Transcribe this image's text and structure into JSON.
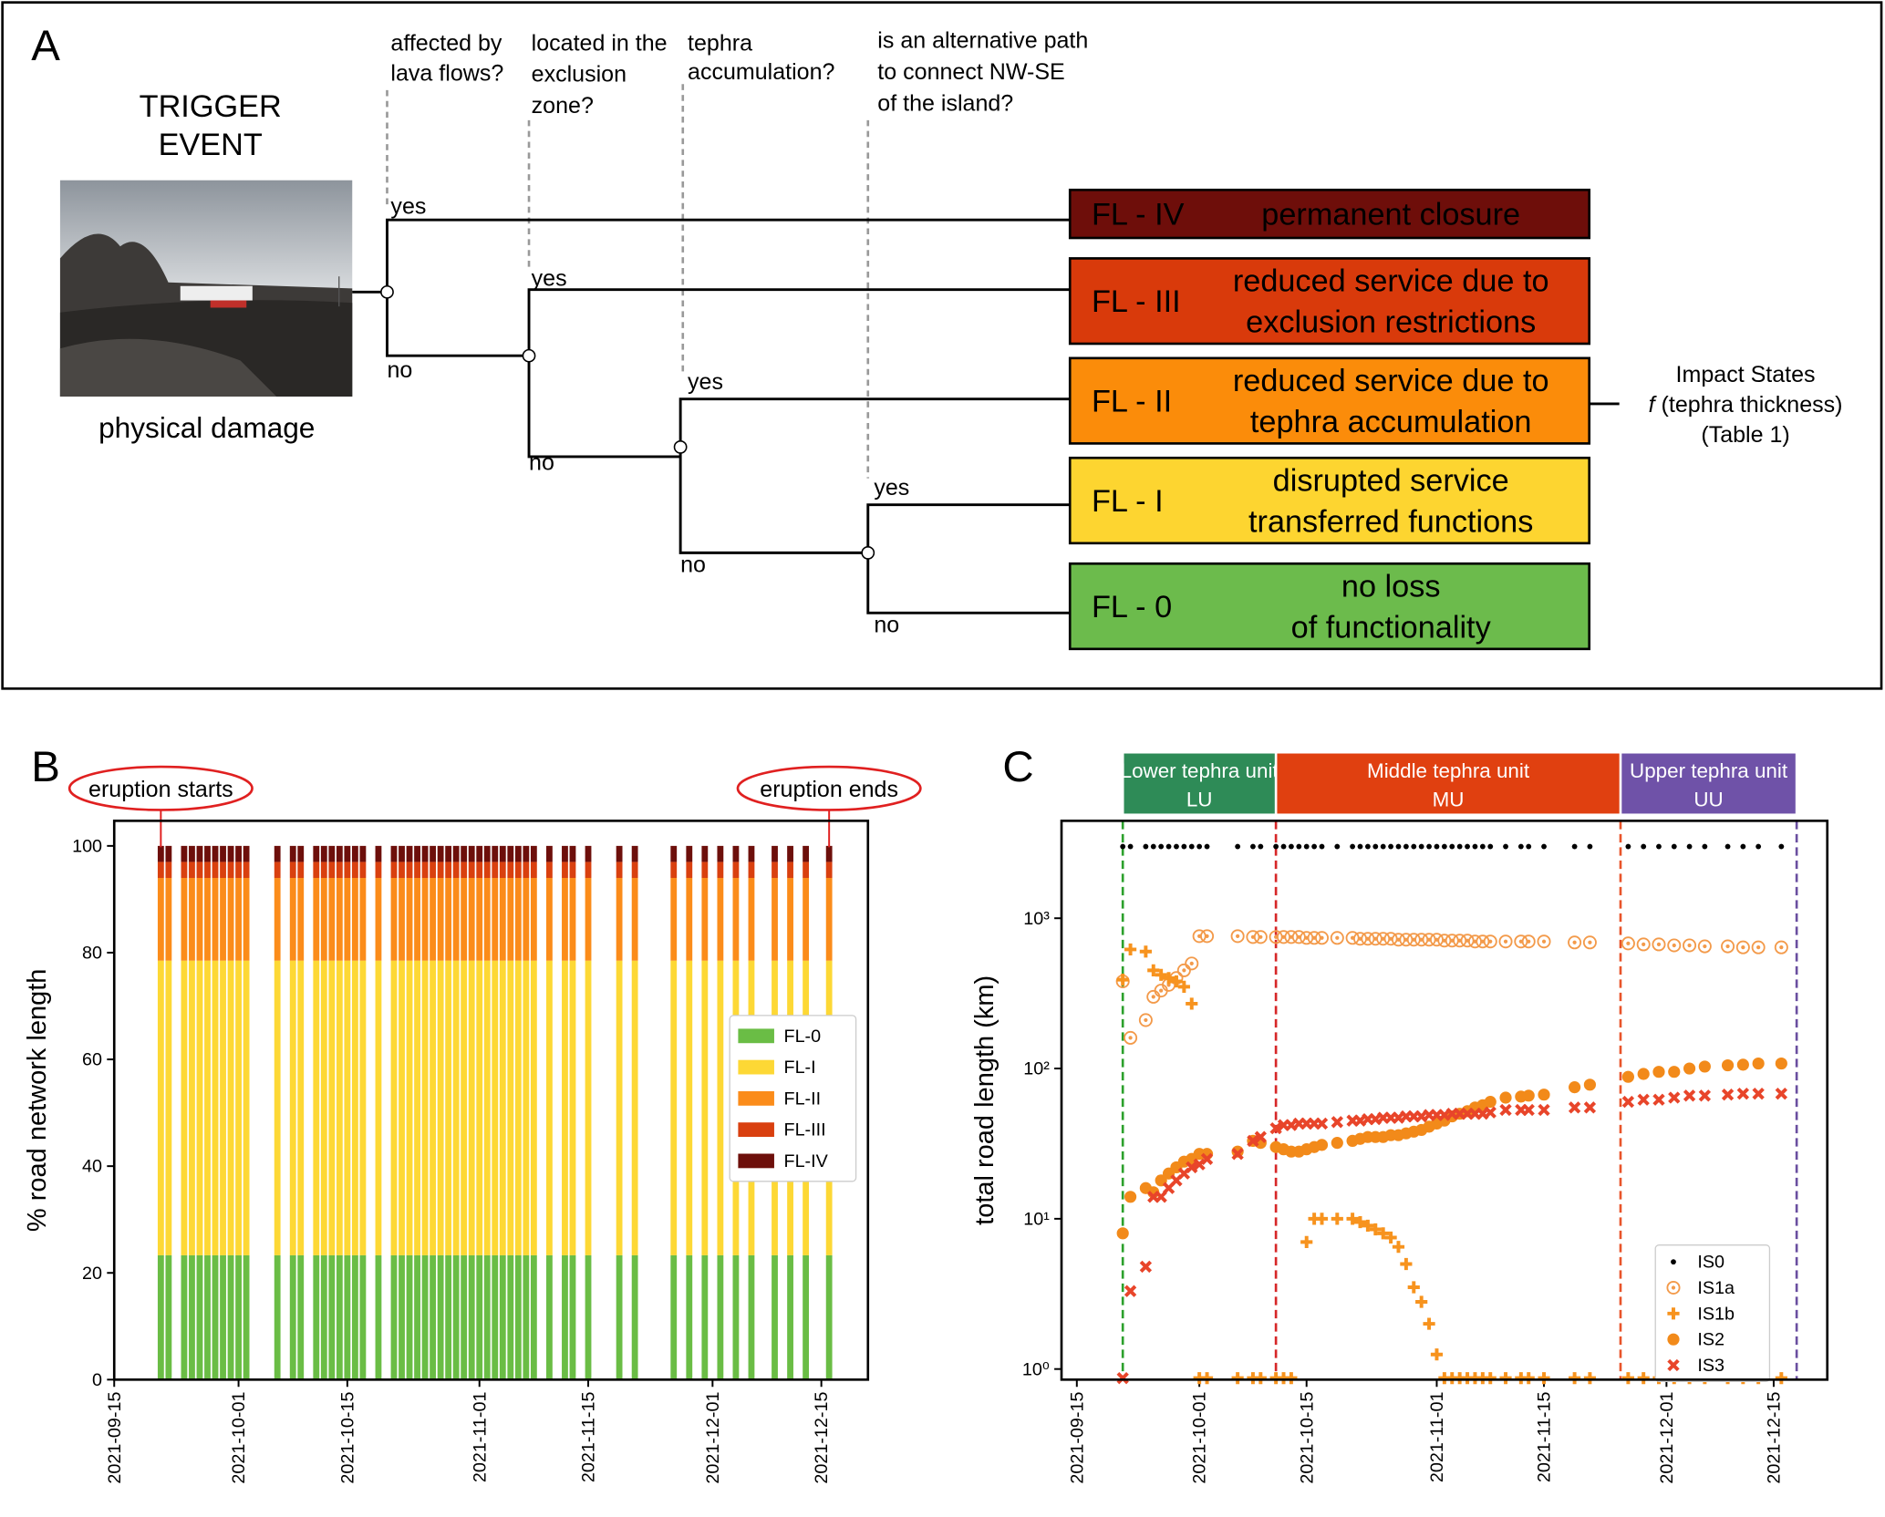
{
  "diagram": {
    "panel_label": "A",
    "trigger_title": [
      "TRIGGER",
      "EVENT"
    ],
    "trigger_caption": "physical damage",
    "questions": [
      [
        "affected by",
        "lava flows?"
      ],
      [
        "located in the",
        "exclusion",
        "zone?"
      ],
      [
        "tephra",
        "accumulation?"
      ],
      [
        "is an alternative path",
        "to connect NW-SE",
        "of the island?"
      ]
    ],
    "yes_label": "yes",
    "no_label": "no",
    "outcomes": [
      {
        "code": "FL - IV",
        "lines": [
          "permanent closure"
        ],
        "color": "#6e0e0a",
        "text_color": "#ffffff"
      },
      {
        "code": "FL - III",
        "lines": [
          "reduced service due to",
          "exclusion restrictions"
        ],
        "color": "#d93a0b",
        "text_color": "#ffffff"
      },
      {
        "code": "FL - II",
        "lines": [
          "reduced service due to",
          "tephra accumulation"
        ],
        "color": "#fb8c0a",
        "text_color": "#ffffff"
      },
      {
        "code": "FL - I",
        "lines": [
          "disrupted service",
          "transferred functions"
        ],
        "color": "#fdd530",
        "text_color": "#000000"
      },
      {
        "code": "FL - 0",
        "lines": [
          "no loss",
          "of functionality"
        ],
        "color": "#6cbb4c",
        "text_color": "#000000"
      }
    ],
    "side_note": {
      "title": "Impact States",
      "function": "f",
      "argument": "(tephra thickness)",
      "ref": "(Table 1)"
    }
  },
  "chart_data": [
    {
      "type": "bar",
      "stacked": true,
      "panel_label": "B",
      "ylabel": "% road network length",
      "legend": "center right",
      "x": [
        "2021-09-21",
        "2021-09-22",
        "2021-09-24",
        "2021-09-25",
        "2021-09-26",
        "2021-09-27",
        "2021-09-28",
        "2021-09-29",
        "2021-09-30",
        "2021-10-01",
        "2021-10-02",
        "2021-10-06",
        "2021-10-08",
        "2021-10-09",
        "2021-10-11",
        "2021-10-12",
        "2021-10-13",
        "2021-10-14",
        "2021-10-15",
        "2021-10-16",
        "2021-10-17",
        "2021-10-19",
        "2021-10-21",
        "2021-10-22",
        "2021-10-23",
        "2021-10-24",
        "2021-10-25",
        "2021-10-26",
        "2021-10-27",
        "2021-10-28",
        "2021-10-29",
        "2021-10-30",
        "2021-10-31",
        "2021-11-01",
        "2021-11-02",
        "2021-11-03",
        "2021-11-04",
        "2021-11-05",
        "2021-11-06",
        "2021-11-07",
        "2021-11-08",
        "2021-11-10",
        "2021-11-12",
        "2021-11-13",
        "2021-11-15",
        "2021-11-19",
        "2021-11-21",
        "2021-11-26",
        "2021-11-28",
        "2021-11-30",
        "2021-12-02",
        "2021-12-04",
        "2021-12-06",
        "2021-12-09",
        "2021-12-11",
        "2021-12-13",
        "2021-12-16"
      ],
      "series": [
        {
          "name": "FL-0",
          "color": "#6abd45",
          "values": [
            23.3,
            23.3,
            23.3,
            23.3,
            23.3,
            23.3,
            23.3,
            23.3,
            23.3,
            23.3,
            23.3,
            23.3,
            23.3,
            23.3,
            23.3,
            23.3,
            23.3,
            23.3,
            23.3,
            23.3,
            23.3,
            23.3,
            23.3,
            23.3,
            23.3,
            23.3,
            23.3,
            23.3,
            23.3,
            23.3,
            23.3,
            23.3,
            23.3,
            23.3,
            23.3,
            23.3,
            23.3,
            23.3,
            23.3,
            23.3,
            23.3,
            23.3,
            23.3,
            23.3,
            23.3,
            23.3,
            23.3,
            23.3,
            23.3,
            23.3,
            23.3,
            23.3,
            23.3,
            23.3,
            23.3,
            23.3,
            23.3
          ]
        },
        {
          "name": "FL-I",
          "color": "#fdd835",
          "values": [
            55.2,
            55.2,
            55.2,
            55.2,
            55.2,
            55.2,
            55.2,
            55.2,
            55.2,
            55.2,
            55.2,
            55.2,
            55.2,
            55.2,
            55.2,
            55.2,
            55.2,
            55.2,
            55.2,
            55.2,
            55.2,
            55.2,
            55.2,
            55.2,
            55.2,
            55.2,
            55.2,
            55.2,
            55.2,
            55.2,
            55.2,
            55.2,
            55.2,
            55.2,
            55.2,
            55.2,
            55.2,
            55.2,
            55.2,
            55.2,
            55.2,
            55.2,
            55.2,
            55.2,
            55.2,
            55.2,
            55.2,
            55.2,
            55.2,
            55.2,
            55.2,
            55.2,
            55.2,
            55.2,
            55.2,
            55.2,
            55.2
          ]
        },
        {
          "name": "FL-II",
          "color": "#fb8c1a",
          "values": [
            15.5,
            15.5,
            15.5,
            15.5,
            15.5,
            15.5,
            15.5,
            15.5,
            15.5,
            15.5,
            15.5,
            15.5,
            15.5,
            15.5,
            15.5,
            15.5,
            15.5,
            15.5,
            15.5,
            15.5,
            15.5,
            15.5,
            15.5,
            15.5,
            15.5,
            15.5,
            15.5,
            15.5,
            15.5,
            15.5,
            15.5,
            15.5,
            15.5,
            15.5,
            15.5,
            15.5,
            15.5,
            15.5,
            15.5,
            15.5,
            15.5,
            15.5,
            15.5,
            15.5,
            15.5,
            15.5,
            15.5,
            15.5,
            15.5,
            15.5,
            15.5,
            15.5,
            15.5,
            15.5,
            15.5,
            15.5,
            15.5
          ]
        },
        {
          "name": "FL-III",
          "color": "#d9400f",
          "values": [
            3,
            3,
            3,
            3,
            3,
            3,
            3,
            3,
            3,
            3,
            3,
            3,
            3,
            3,
            3,
            3,
            3,
            3,
            3,
            3,
            3,
            3,
            3,
            3,
            3,
            3,
            3,
            3,
            3,
            3,
            3,
            3,
            3,
            3,
            3,
            3,
            3,
            3,
            3,
            3,
            3,
            3,
            3,
            3,
            3,
            3,
            3,
            3,
            3,
            3,
            3,
            3,
            3,
            3,
            3,
            3,
            3
          ]
        },
        {
          "name": "FL-IV",
          "color": "#6d0f0b",
          "values": [
            3,
            3,
            3,
            3,
            3,
            3,
            3,
            3,
            3,
            3,
            3,
            3,
            3,
            3,
            3,
            3,
            3,
            3,
            3,
            3,
            3,
            3,
            3,
            3,
            3,
            3,
            3,
            3,
            3,
            3,
            3,
            3,
            3,
            3,
            3,
            3,
            3,
            3,
            3,
            3,
            3,
            3,
            3,
            3,
            3,
            3,
            3,
            3,
            3,
            3,
            3,
            3,
            3,
            3,
            3,
            3,
            3
          ]
        }
      ],
      "ylim": [
        0,
        104.7
      ],
      "yticks": [
        0,
        20,
        40,
        60,
        80,
        100
      ],
      "xlim": [
        "2021-09-15",
        "2021-12-21"
      ],
      "xticks": [
        "2021-09-15",
        "2021-10-01",
        "2021-10-15",
        "2021-11-01",
        "2021-11-15",
        "2021-12-01",
        "2021-12-15"
      ],
      "annotations": [
        {
          "text": "eruption starts",
          "date": "2021-09-21"
        },
        {
          "text": "eruption ends",
          "date": "2021-12-16"
        }
      ]
    },
    {
      "type": "scatter",
      "log_y": true,
      "panel_label": "C",
      "ylabel": "total road length (km)",
      "legend": "lower right",
      "x": [
        "2021-09-21",
        "2021-09-22",
        "2021-09-24",
        "2021-09-25",
        "2021-09-26",
        "2021-09-27",
        "2021-09-28",
        "2021-09-29",
        "2021-09-30",
        "2021-10-01",
        "2021-10-02",
        "2021-10-06",
        "2021-10-08",
        "2021-10-09",
        "2021-10-11",
        "2021-10-12",
        "2021-10-13",
        "2021-10-14",
        "2021-10-15",
        "2021-10-16",
        "2021-10-17",
        "2021-10-19",
        "2021-10-21",
        "2021-10-22",
        "2021-10-23",
        "2021-10-24",
        "2021-10-25",
        "2021-10-26",
        "2021-10-27",
        "2021-10-28",
        "2021-10-29",
        "2021-10-30",
        "2021-10-31",
        "2021-11-01",
        "2021-11-02",
        "2021-11-03",
        "2021-11-04",
        "2021-11-05",
        "2021-11-06",
        "2021-11-07",
        "2021-11-08",
        "2021-11-10",
        "2021-11-12",
        "2021-11-13",
        "2021-11-15",
        "2021-11-19",
        "2021-11-21",
        "2021-11-26",
        "2021-11-28",
        "2021-11-30",
        "2021-12-02",
        "2021-12-04",
        "2021-12-06",
        "2021-12-09",
        "2021-12-11",
        "2021-12-13",
        "2021-12-16"
      ],
      "series": [
        {
          "name": "IS0",
          "color": "#000000",
          "marker": "dot",
          "values": [
            3000,
            3000,
            3000,
            3000,
            3000,
            3000,
            3000,
            3000,
            3000,
            3000,
            3000,
            3000,
            3000,
            3000,
            3000,
            3000,
            3000,
            3000,
            3000,
            3000,
            3000,
            3000,
            3000,
            3000,
            3000,
            3000,
            3000,
            3000,
            3000,
            3000,
            3000,
            3000,
            3000,
            3000,
            3000,
            3000,
            3000,
            3000,
            3000,
            3000,
            3000,
            3000,
            3000,
            3000,
            3000,
            3000,
            3000,
            3000,
            3000,
            3000,
            3000,
            3000,
            3000,
            3000,
            3000,
            3000,
            3000
          ]
        },
        {
          "name": "IS1a",
          "color": "#f39a4a",
          "marker": "ring",
          "values": [
            380,
            160,
            210,
            300,
            330,
            360,
            400,
            450,
            500,
            760,
            760,
            760,
            750,
            750,
            750,
            750,
            750,
            750,
            740,
            740,
            740,
            740,
            740,
            730,
            730,
            730,
            730,
            730,
            720,
            720,
            720,
            720,
            720,
            720,
            710,
            710,
            710,
            710,
            700,
            700,
            700,
            700,
            700,
            700,
            700,
            690,
            690,
            680,
            670,
            670,
            660,
            660,
            650,
            650,
            640,
            640,
            640
          ]
        },
        {
          "name": "IS1b",
          "color": "#f7931e",
          "marker": "plus",
          "values": [
            390,
            620,
            600,
            450,
            420,
            400,
            380,
            350,
            270,
            0.87,
            0.87,
            0.87,
            0.87,
            0.87,
            0.87,
            0.87,
            0.87,
            null,
            7,
            10,
            10,
            10,
            10,
            9.5,
            9,
            8.5,
            8,
            7.5,
            6.5,
            5,
            3.5,
            2.8,
            2,
            1.25,
            0.87,
            0.87,
            0.87,
            0.87,
            0.87,
            0.87,
            0.87,
            0.87,
            0.87,
            0.87,
            0.87,
            0.87,
            0.87,
            0.87,
            0.87,
            0.87,
            0.87,
            0.87,
            0.87,
            0.87,
            0.87,
            0.87,
            0.87
          ]
        },
        {
          "name": "IS2",
          "color": "#f28a1a",
          "marker": "circle",
          "values": [
            8,
            14,
            16,
            15,
            18,
            20,
            22,
            24,
            25,
            27,
            27,
            28,
            33,
            32,
            30,
            29,
            28,
            28,
            29,
            30,
            31,
            32,
            33,
            34,
            35,
            35,
            35,
            36,
            36,
            37,
            38,
            39,
            41,
            43,
            45,
            48,
            50,
            52,
            55,
            57,
            60,
            64,
            65,
            66,
            67,
            75,
            78,
            88,
            92,
            95,
            95,
            100,
            103,
            105,
            106,
            108,
            108
          ]
        },
        {
          "name": "IS3",
          "color": "#e8452a",
          "marker": "x",
          "values": [
            0.87,
            3.3,
            4.8,
            14,
            14,
            16,
            18,
            20,
            22,
            23,
            25,
            27,
            33,
            35,
            40,
            42,
            42,
            43,
            43,
            43,
            43,
            44,
            45,
            45,
            46,
            46,
            47,
            47,
            47,
            48,
            48,
            48,
            49,
            49,
            49,
            50,
            50,
            50,
            50,
            50,
            51,
            53,
            53,
            53,
            53,
            55,
            55,
            60,
            62,
            62,
            64,
            66,
            66,
            67,
            68,
            68,
            68
          ]
        }
      ],
      "ylim": [
        0.85,
        4450
      ],
      "yticks": [
        {
          "value": 1,
          "label": "10⁰"
        },
        {
          "value": 10,
          "label": "10¹"
        },
        {
          "value": 100,
          "label": "10²"
        },
        {
          "value": 1000,
          "label": "10³"
        }
      ],
      "xlim": [
        "2021-09-13",
        "2021-12-22"
      ],
      "xticks": [
        "2021-09-15",
        "2021-10-01",
        "2021-10-15",
        "2021-11-01",
        "2021-11-15",
        "2021-12-01",
        "2021-12-15"
      ],
      "phases": [
        {
          "name": "Lower tephra unit",
          "short": "LU",
          "start": "2021-09-21",
          "end": "2021-10-11",
          "color": "#2e8b57"
        },
        {
          "name": "Middle tephra unit",
          "short": "MU",
          "start": "2021-10-11",
          "end": "2021-11-25",
          "color": "#e04010"
        },
        {
          "name": "Upper tephra unit",
          "short": "UU",
          "start": "2021-11-25",
          "end": "2021-12-18",
          "color": "#6f52a8"
        }
      ],
      "boundaries": [
        {
          "date": "2021-09-21",
          "color": "#2ca02c"
        },
        {
          "date": "2021-10-11",
          "color": "#d62728"
        },
        {
          "date": "2021-11-25",
          "color": "#e8542a"
        },
        {
          "date": "2021-12-18",
          "color": "#6a4fa0"
        }
      ]
    }
  ]
}
